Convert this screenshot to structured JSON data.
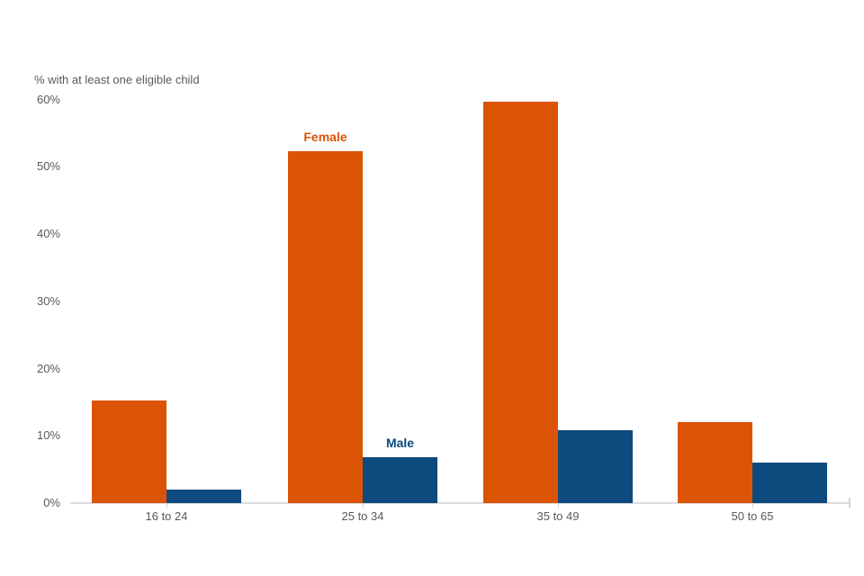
{
  "chart_data": {
    "type": "bar",
    "ylabel": "% with at least one eligible child",
    "categories": [
      "16 to 24",
      "25 to 34",
      "35 to 49",
      "50 to 65"
    ],
    "series": [
      {
        "name": "Female",
        "color": "#db5405",
        "values": [
          15.3,
          52.3,
          59.7,
          12.1
        ]
      },
      {
        "name": "Male",
        "color": "#0d4a7d",
        "values": [
          2.0,
          6.8,
          10.9,
          6.0
        ]
      }
    ],
    "ylim": [
      0,
      60
    ],
    "yticks": [
      0,
      10,
      20,
      30,
      40,
      50,
      60
    ],
    "ytick_labels": [
      "0%",
      "10%",
      "20%",
      "30%",
      "40%",
      "50%",
      "60%"
    ],
    "grid": false,
    "legend": "series name annotated above each series bar in the '25 to 34' group",
    "annotations": [
      {
        "text": "Female",
        "series_index": 0,
        "category_index": 1
      },
      {
        "text": "Male",
        "series_index": 1,
        "category_index": 1
      }
    ],
    "styles": {
      "text_color": "#595959",
      "axis_color": "#dcdcdc",
      "background": "#ffffff"
    }
  }
}
